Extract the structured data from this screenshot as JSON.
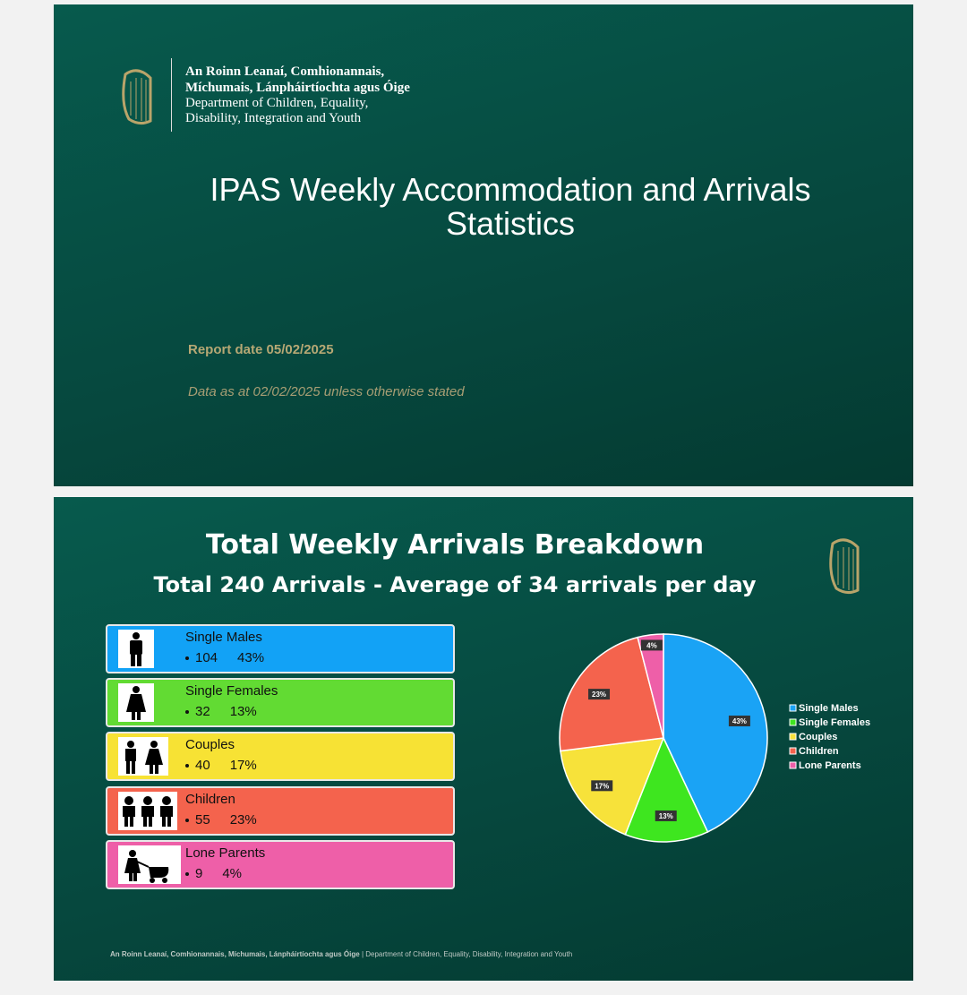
{
  "slide1": {
    "logo_irish": [
      "An Roinn Leanaí, Comhionannais,",
      "Míchumais, Lánpháirtíochta agus Óige"
    ],
    "logo_english": [
      "Department of Children, Equality,",
      "Disability, Integration and Youth"
    ],
    "title": [
      "IPAS Weekly Accommodation and Arrivals",
      "Statistics"
    ],
    "report_date": "Report date 05/02/2025",
    "data_note": "Data as at  02/02/2025 unless otherwise stated"
  },
  "slide2": {
    "title": "Total Weekly Arrivals Breakdown",
    "subtitle": "Total 240 Arrivals - Average of  34 arrivals per day",
    "cards": [
      {
        "name": "Single Males",
        "count": "104",
        "percent": "43%"
      },
      {
        "name": "Single Females",
        "count": "32",
        "percent": "13%"
      },
      {
        "name": "Couples",
        "count": "40",
        "percent": "17%"
      },
      {
        "name": "Children",
        "count": "55",
        "percent": "23%"
      },
      {
        "name": "Lone Parents",
        "count": "9",
        "percent": "4%"
      }
    ],
    "footer": {
      "irish": "An Roinn Leanaí, Comhionannais, Míchumais, Lánpháirtíochta agus Óige",
      "separator": "|",
      "english": "Department of Children, Equality, Disability, Integration and Youth"
    }
  },
  "chart_data": {
    "type": "pie",
    "categories": [
      "Single Males",
      "Single Females",
      "Couples",
      "Children",
      "Lone Parents"
    ],
    "values": [
      43,
      13,
      17,
      23,
      4
    ],
    "value_labels": [
      "43%",
      "13%",
      "17%",
      "23%",
      "4%"
    ],
    "colors": [
      "#1aa3f5",
      "#3ee61f",
      "#f7e23a",
      "#f4634d",
      "#ee5fa8"
    ],
    "legend": "right"
  }
}
